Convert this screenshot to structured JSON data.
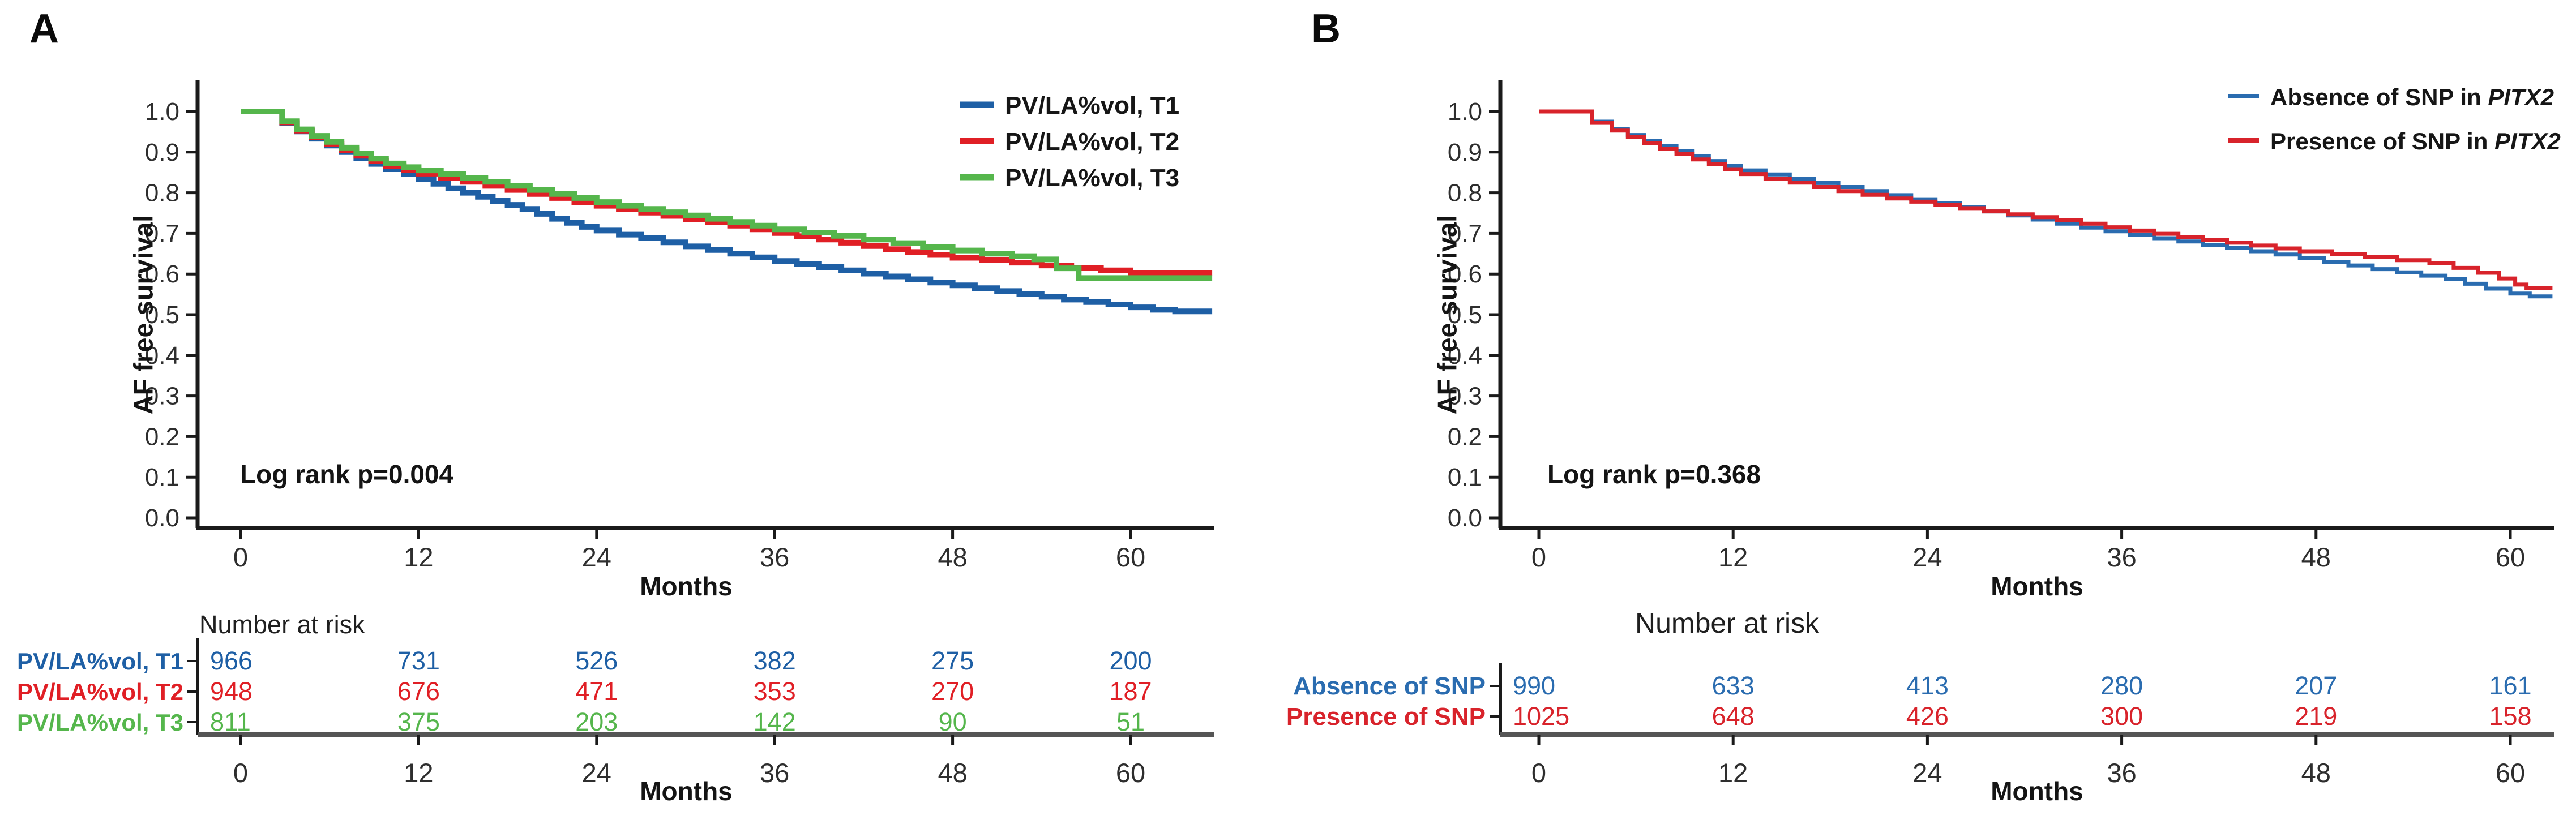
{
  "figure": {
    "panels": [
      {
        "letter": "A"
      },
      {
        "letter": "B"
      }
    ]
  },
  "chart_data": [
    {
      "type": "line",
      "subtype": "kaplan-meier-step",
      "title": "",
      "xlabel": "Months",
      "ylabel": "AF free survival",
      "xlim": [
        0,
        65.5
      ],
      "ylim": [
        0.0,
        1.0
      ],
      "xticks": [
        0,
        12,
        24,
        36,
        48,
        60
      ],
      "ytick_labels": [
        "1.0",
        "0.9",
        "0.8",
        "0.7",
        "0.6",
        "0.5",
        "0.4",
        "0.3",
        "0.2",
        "0.1",
        "0.0"
      ],
      "grid": false,
      "legend_position": "top-right",
      "annotation": "Log rank p=0.004",
      "legend": [
        {
          "text": "PV/LA%vol, T1",
          "italic": "",
          "color": "#1e5fa5"
        },
        {
          "text": "PV/LA%vol, T2",
          "italic": "",
          "color": "#e01f25"
        },
        {
          "text": "PV/LA%vol, T3",
          "italic": "",
          "color": "#55b64c"
        }
      ],
      "series": [
        {
          "name": "PV/LA%vol, T1",
          "color": "#1e5fa5",
          "steps": [
            [
              0,
              1.0
            ],
            [
              2.8,
              0.971
            ],
            [
              3.8,
              0.951
            ],
            [
              4.8,
              0.933
            ],
            [
              5.8,
              0.916
            ],
            [
              6.8,
              0.9
            ],
            [
              7.8,
              0.885
            ],
            [
              8.8,
              0.871
            ],
            [
              9.8,
              0.858
            ],
            [
              11,
              0.846
            ],
            [
              12,
              0.834
            ],
            [
              13,
              0.822
            ],
            [
              14,
              0.811
            ],
            [
              15,
              0.8
            ],
            [
              16,
              0.79
            ],
            [
              17,
              0.78
            ],
            [
              18,
              0.77
            ],
            [
              19,
              0.76
            ],
            [
              20,
              0.748
            ],
            [
              21,
              0.736
            ],
            [
              22,
              0.726
            ],
            [
              23,
              0.716
            ],
            [
              24,
              0.707
            ],
            [
              25.5,
              0.697
            ],
            [
              27,
              0.688
            ],
            [
              28.5,
              0.678
            ],
            [
              30,
              0.668
            ],
            [
              31.5,
              0.659
            ],
            [
              33,
              0.65
            ],
            [
              34.5,
              0.641
            ],
            [
              36,
              0.632
            ],
            [
              37.5,
              0.624
            ],
            [
              39,
              0.617
            ],
            [
              40.5,
              0.609
            ],
            [
              42,
              0.601
            ],
            [
              43.5,
              0.594
            ],
            [
              45,
              0.587
            ],
            [
              46.5,
              0.579
            ],
            [
              48,
              0.572
            ],
            [
              49.5,
              0.565
            ],
            [
              51,
              0.558
            ],
            [
              52.5,
              0.551
            ],
            [
              54,
              0.544
            ],
            [
              55.5,
              0.537
            ],
            [
              57,
              0.531
            ],
            [
              58.5,
              0.525
            ],
            [
              60,
              0.518
            ],
            [
              61.5,
              0.512
            ],
            [
              63,
              0.508
            ]
          ]
        },
        {
          "name": "PV/LA%vol, T2",
          "color": "#e01f25",
          "steps": [
            [
              0,
              1.0
            ],
            [
              2.8,
              0.973
            ],
            [
              3.8,
              0.953
            ],
            [
              4.8,
              0.936
            ],
            [
              5.8,
              0.92
            ],
            [
              6.8,
              0.905
            ],
            [
              7.8,
              0.891
            ],
            [
              8.8,
              0.878
            ],
            [
              9.8,
              0.866
            ],
            [
              11,
              0.856
            ],
            [
              12,
              0.847
            ],
            [
              13.5,
              0.837
            ],
            [
              15,
              0.827
            ],
            [
              16.5,
              0.817
            ],
            [
              18,
              0.807
            ],
            [
              19.5,
              0.797
            ],
            [
              21,
              0.787
            ],
            [
              22.5,
              0.777
            ],
            [
              24,
              0.768
            ],
            [
              25.5,
              0.759
            ],
            [
              27,
              0.751
            ],
            [
              28.5,
              0.743
            ],
            [
              30,
              0.735
            ],
            [
              31.5,
              0.727
            ],
            [
              33,
              0.719
            ],
            [
              34.5,
              0.71
            ],
            [
              36,
              0.701
            ],
            [
              37.5,
              0.693
            ],
            [
              39,
              0.685
            ],
            [
              40.5,
              0.677
            ],
            [
              42,
              0.669
            ],
            [
              43.5,
              0.661
            ],
            [
              45,
              0.654
            ],
            [
              46.5,
              0.647
            ],
            [
              48,
              0.64
            ],
            [
              50,
              0.634
            ],
            [
              52,
              0.628
            ],
            [
              54,
              0.621
            ],
            [
              56,
              0.615
            ],
            [
              58,
              0.609
            ],
            [
              60,
              0.603
            ]
          ]
        },
        {
          "name": "PV/LA%vol, T3",
          "color": "#55b64c",
          "steps": [
            [
              0,
              1.0
            ],
            [
              2.8,
              0.976
            ],
            [
              3.8,
              0.956
            ],
            [
              4.8,
              0.94
            ],
            [
              5.8,
              0.925
            ],
            [
              6.8,
              0.911
            ],
            [
              7.8,
              0.897
            ],
            [
              8.8,
              0.884
            ],
            [
              9.8,
              0.872
            ],
            [
              11,
              0.863
            ],
            [
              12,
              0.855
            ],
            [
              13.5,
              0.846
            ],
            [
              15,
              0.837
            ],
            [
              16.5,
              0.827
            ],
            [
              18,
              0.817
            ],
            [
              19.5,
              0.807
            ],
            [
              21,
              0.797
            ],
            [
              22.5,
              0.787
            ],
            [
              24,
              0.777
            ],
            [
              25.5,
              0.768
            ],
            [
              27,
              0.76
            ],
            [
              28.5,
              0.752
            ],
            [
              30,
              0.744
            ],
            [
              31.5,
              0.736
            ],
            [
              33,
              0.728
            ],
            [
              34.5,
              0.719
            ],
            [
              36,
              0.71
            ],
            [
              38,
              0.702
            ],
            [
              40,
              0.694
            ],
            [
              42,
              0.685
            ],
            [
              44,
              0.676
            ],
            [
              46,
              0.667
            ],
            [
              48,
              0.658
            ],
            [
              50,
              0.65
            ],
            [
              52,
              0.644
            ],
            [
              53.5,
              0.636
            ],
            [
              55,
              0.614
            ],
            [
              56.5,
              0.59
            ]
          ]
        }
      ],
      "number_at_risk": {
        "title": "Number at risk",
        "times": [
          0,
          12,
          24,
          36,
          48,
          60
        ],
        "rows": [
          {
            "label": "PV/LA%vol, T1",
            "color": "#1e5fa5",
            "values": [
              "966",
              "731",
              "526",
              "382",
              "275",
              "200"
            ]
          },
          {
            "label": "PV/LA%vol, T2",
            "color": "#e01f25",
            "values": [
              "948",
              "676",
              "471",
              "353",
              "270",
              "187"
            ]
          },
          {
            "label": "PV/LA%vol, T3",
            "color": "#55b64c",
            "values": [
              "811",
              "375",
              "203",
              "142",
              "90",
              "51"
            ]
          }
        ]
      }
    },
    {
      "type": "line",
      "subtype": "kaplan-meier-step",
      "title": "",
      "xlabel": "Months",
      "ylabel": "AF free survival",
      "xlim": [
        0,
        62.6
      ],
      "ylim": [
        0.0,
        1.0
      ],
      "xticks": [
        0,
        12,
        24,
        36,
        48,
        60
      ],
      "ytick_labels": [
        "1.0",
        "0.9",
        "0.8",
        "0.7",
        "0.6",
        "0.5",
        "0.4",
        "0.3",
        "0.2",
        "0.1",
        "0.0"
      ],
      "grid": false,
      "legend_position": "top-right",
      "annotation": "Log rank p=0.368",
      "legend": [
        {
          "text": "Absence of SNP in ",
          "italic": "PITX2",
          "color": "#2a6cb0"
        },
        {
          "text": "Presence of SNP in ",
          "italic": "PITX2",
          "color": "#d8232b"
        }
      ],
      "series": [
        {
          "name": "Absence of SNP",
          "color": "#2a6cb0",
          "steps": [
            [
              0,
              1.0
            ],
            [
              3.3,
              0.975
            ],
            [
              4.5,
              0.957
            ],
            [
              5.5,
              0.942
            ],
            [
              6.5,
              0.928
            ],
            [
              7.5,
              0.915
            ],
            [
              8.5,
              0.902
            ],
            [
              9.5,
              0.89
            ],
            [
              10.5,
              0.878
            ],
            [
              11.5,
              0.866
            ],
            [
              12.5,
              0.855
            ],
            [
              14,
              0.845
            ],
            [
              15.5,
              0.835
            ],
            [
              17,
              0.824
            ],
            [
              18.5,
              0.814
            ],
            [
              20,
              0.804
            ],
            [
              21.5,
              0.794
            ],
            [
              23,
              0.784
            ],
            [
              24.5,
              0.774
            ],
            [
              26,
              0.764
            ],
            [
              27.5,
              0.754
            ],
            [
              29,
              0.744
            ],
            [
              30.5,
              0.734
            ],
            [
              32,
              0.724
            ],
            [
              33.5,
              0.714
            ],
            [
              35,
              0.705
            ],
            [
              36.5,
              0.696
            ],
            [
              38,
              0.688
            ],
            [
              39.5,
              0.68
            ],
            [
              41,
              0.672
            ],
            [
              42.5,
              0.664
            ],
            [
              44,
              0.656
            ],
            [
              45.5,
              0.648
            ],
            [
              47,
              0.64
            ],
            [
              48.5,
              0.63
            ],
            [
              50,
              0.621
            ],
            [
              51.5,
              0.612
            ],
            [
              53,
              0.604
            ],
            [
              54.5,
              0.596
            ],
            [
              56,
              0.588
            ],
            [
              57.2,
              0.576
            ],
            [
              58.5,
              0.564
            ],
            [
              60,
              0.552
            ],
            [
              61.2,
              0.545
            ]
          ]
        },
        {
          "name": "Presence of SNP",
          "color": "#d8232b",
          "steps": [
            [
              0,
              1.0
            ],
            [
              3.3,
              0.972
            ],
            [
              4.5,
              0.953
            ],
            [
              5.5,
              0.937
            ],
            [
              6.5,
              0.922
            ],
            [
              7.5,
              0.908
            ],
            [
              8.5,
              0.895
            ],
            [
              9.5,
              0.882
            ],
            [
              10.5,
              0.87
            ],
            [
              11.5,
              0.858
            ],
            [
              12.5,
              0.846
            ],
            [
              14,
              0.835
            ],
            [
              15.5,
              0.825
            ],
            [
              17,
              0.814
            ],
            [
              18.5,
              0.804
            ],
            [
              20,
              0.795
            ],
            [
              21.5,
              0.786
            ],
            [
              23,
              0.778
            ],
            [
              24.5,
              0.77
            ],
            [
              26,
              0.762
            ],
            [
              27.5,
              0.754
            ],
            [
              29,
              0.747
            ],
            [
              30.5,
              0.74
            ],
            [
              32,
              0.732
            ],
            [
              33.5,
              0.724
            ],
            [
              35,
              0.715
            ],
            [
              36.5,
              0.707
            ],
            [
              38,
              0.699
            ],
            [
              39.5,
              0.691
            ],
            [
              41,
              0.684
            ],
            [
              42.5,
              0.677
            ],
            [
              44,
              0.67
            ],
            [
              45.5,
              0.663
            ],
            [
              47,
              0.656
            ],
            [
              49,
              0.649
            ],
            [
              51,
              0.642
            ],
            [
              53,
              0.634
            ],
            [
              55,
              0.627
            ],
            [
              56.5,
              0.615
            ],
            [
              58,
              0.603
            ],
            [
              59.3,
              0.589
            ],
            [
              60.3,
              0.574
            ],
            [
              61,
              0.566
            ]
          ]
        }
      ],
      "number_at_risk": {
        "title": "Number at risk",
        "times": [
          0,
          12,
          24,
          36,
          48,
          60
        ],
        "rows": [
          {
            "label": "Absence of SNP",
            "color": "#2a6cb0",
            "values": [
              "990",
              "633",
              "413",
              "280",
              "207",
              "161"
            ]
          },
          {
            "label": "Presence of SNP",
            "color": "#d8232b",
            "values": [
              "1025",
              "648",
              "426",
              "300",
              "219",
              "158"
            ]
          }
        ]
      }
    }
  ]
}
